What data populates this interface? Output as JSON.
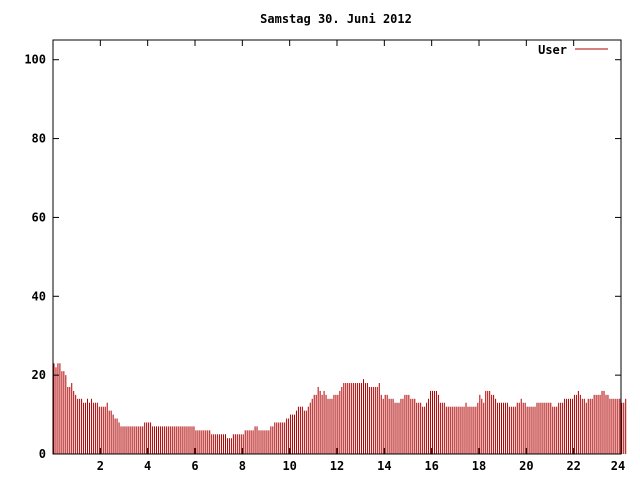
{
  "chart_data": {
    "type": "bar",
    "title": "Samstag 30. Juni 2012",
    "xlabel": "",
    "ylabel": "",
    "xlim": [
      0,
      24
    ],
    "ylim": [
      0,
      105
    ],
    "x_ticks": [
      2,
      4,
      6,
      8,
      10,
      12,
      14,
      16,
      18,
      20,
      22,
      24
    ],
    "y_ticks": [
      0,
      20,
      40,
      60,
      80,
      100
    ],
    "grid": false,
    "legend": "top-right",
    "series": [
      {
        "name": "User",
        "color": "#b00000",
        "step_hours": 0.0833,
        "values": [
          23,
          22,
          23,
          23,
          21,
          21,
          20,
          17,
          17,
          18,
          16,
          15,
          14,
          14,
          14,
          13,
          13,
          14,
          13,
          14,
          13,
          13,
          13,
          12,
          12,
          12,
          12,
          13,
          11,
          11,
          10,
          9,
          9,
          8,
          7,
          7,
          7,
          7,
          7,
          7,
          7,
          7,
          7,
          7,
          7,
          7,
          8,
          8,
          8,
          8,
          7,
          7,
          7,
          7,
          7,
          7,
          7,
          7,
          7,
          7,
          7,
          7,
          7,
          7,
          7,
          7,
          7,
          7,
          7,
          7,
          7,
          7,
          6,
          6,
          6,
          6,
          6,
          6,
          6,
          6,
          5,
          5,
          5,
          5,
          5,
          5,
          5,
          5,
          4,
          4,
          4,
          5,
          5,
          5,
          5,
          5,
          5,
          6,
          6,
          6,
          6,
          6,
          7,
          7,
          6,
          6,
          6,
          6,
          6,
          6,
          7,
          7,
          8,
          8,
          8,
          8,
          8,
          8,
          9,
          9,
          10,
          10,
          10,
          11,
          12,
          12,
          12,
          11,
          11,
          12,
          13,
          14,
          15,
          15,
          17,
          16,
          15,
          16,
          15,
          14,
          14,
          14,
          15,
          15,
          15,
          16,
          17,
          18,
          18,
          18,
          18,
          18,
          18,
          18,
          18,
          18,
          18,
          19,
          18,
          18,
          17,
          17,
          17,
          17,
          17,
          18,
          15,
          14,
          15,
          15,
          14,
          14,
          14,
          13,
          13,
          13,
          14,
          14,
          15,
          15,
          15,
          14,
          14,
          14,
          13,
          13,
          13,
          12,
          12,
          13,
          14,
          16,
          16,
          16,
          16,
          15,
          13,
          13,
          13,
          12,
          12,
          12,
          12,
          12,
          12,
          12,
          12,
          12,
          12,
          13,
          12,
          12,
          12,
          12,
          12,
          13,
          15,
          14,
          13,
          16,
          16,
          16,
          15,
          15,
          14,
          13,
          13,
          13,
          13,
          13,
          13,
          12,
          12,
          12,
          12,
          13,
          13,
          14,
          13,
          13,
          12,
          12,
          12,
          12,
          12,
          13,
          13,
          13,
          13,
          13,
          13,
          13,
          13,
          12,
          12,
          12,
          13,
          13,
          13,
          14,
          14,
          14,
          14,
          14,
          15,
          15,
          16,
          15,
          14,
          14,
          13,
          14,
          14,
          14,
          15,
          15,
          15,
          15,
          16,
          16,
          15,
          15,
          14,
          14,
          14,
          14,
          14,
          14,
          13,
          13,
          14
        ]
      }
    ]
  }
}
